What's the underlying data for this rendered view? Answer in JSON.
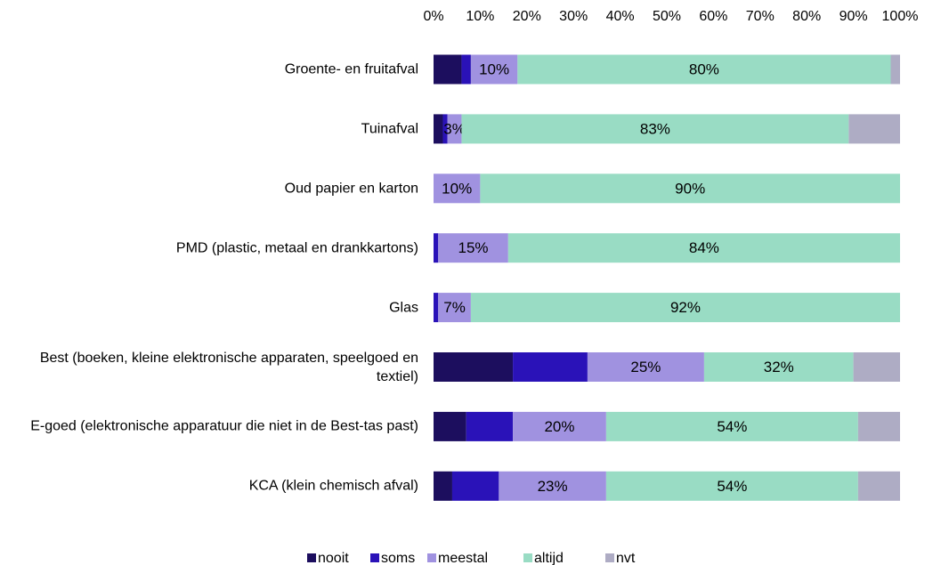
{
  "chart_data": {
    "type": "stacked_barh",
    "categories": [
      "Groente- en fruitafval",
      "Tuinafval",
      "Oud papier en karton",
      "PMD (plastic, metaal en drankkartons)",
      "Glas",
      "Best (boeken, kleine elektronische apparaten, speelgoed en textiel)",
      "E-goed (elektronische apparatuur die niet in de Best-tas past)",
      "KCA (klein chemisch afval)"
    ],
    "series": [
      {
        "name": "nooit",
        "color": "#1c0e5e",
        "values": [
          6,
          2,
          0,
          0,
          0,
          17,
          7,
          4
        ]
      },
      {
        "name": "soms",
        "color": "#2a12b8",
        "values": [
          2,
          1,
          0,
          1,
          1,
          16,
          10,
          10
        ]
      },
      {
        "name": "meestal",
        "color": "#a092e0",
        "values": [
          10,
          3,
          10,
          15,
          7,
          25,
          20,
          23
        ],
        "value_labels": [
          "10%",
          "3%",
          "10%",
          "15%",
          "7%",
          "25%",
          "20%",
          "23%"
        ]
      },
      {
        "name": "altijd",
        "color": "#99dcc4",
        "values": [
          80,
          83,
          90,
          84,
          92,
          32,
          54,
          54
        ],
        "value_labels": [
          "80%",
          "83%",
          "90%",
          "84%",
          "92%",
          "32%",
          "54%",
          "54%"
        ]
      },
      {
        "name": "nvt",
        "color": "#aeacc4",
        "values": [
          2,
          11,
          0,
          0,
          0,
          10,
          9,
          9
        ]
      }
    ],
    "xlim": [
      0,
      100
    ],
    "xticks": [
      {
        "value": 0,
        "label": "0%"
      },
      {
        "value": 10,
        "label": "10%"
      },
      {
        "value": 20,
        "label": "20%"
      },
      {
        "value": 30,
        "label": "30%"
      },
      {
        "value": 40,
        "label": "40%"
      },
      {
        "value": 50,
        "label": "50%"
      },
      {
        "value": 60,
        "label": "60%"
      },
      {
        "value": 70,
        "label": "70%"
      },
      {
        "value": 80,
        "label": "80%"
      },
      {
        "value": 90,
        "label": "90%"
      },
      {
        "value": 100,
        "label": "100%"
      }
    ],
    "legend": "bottom"
  }
}
